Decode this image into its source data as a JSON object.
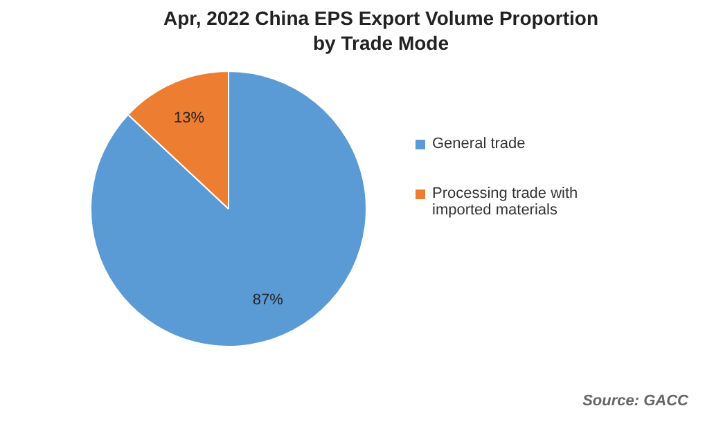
{
  "chart_data": {
    "type": "pie",
    "title": "Apr, 2022 China EPS Export Volume Proportion by Trade Mode",
    "categories": [
      "General trade",
      "Processing trade with imported materials"
    ],
    "values": [
      87,
      13
    ],
    "colors": [
      "#5b9bd5",
      "#ed7d31"
    ],
    "value_labels": [
      "87%",
      "13%"
    ],
    "legend": "right",
    "annotations": [
      "Source: GACC"
    ]
  }
}
